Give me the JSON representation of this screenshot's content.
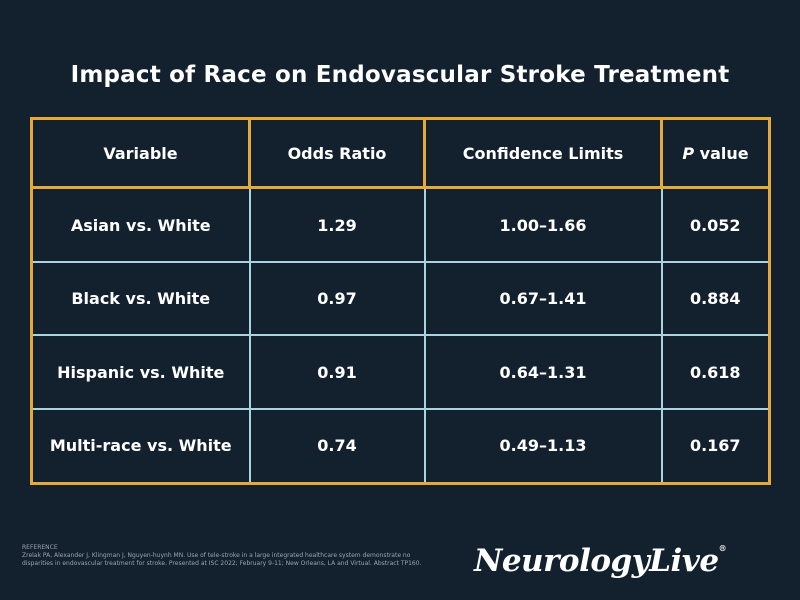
{
  "title": "Impact of Race on Endovascular Stroke Treatment",
  "colors": {
    "background": "#13202e",
    "border_accent": "#e6a93a",
    "row_divider": "#a9d3e0"
  },
  "chart_data": {
    "type": "table",
    "title": "Impact of Race on Endovascular Stroke Treatment",
    "columns": [
      "Variable",
      "Odds Ratio",
      "Confidence Limits",
      "value"
    ],
    "p_prefix": "P",
    "rows": [
      [
        "Asian vs. White",
        "1.29",
        "1.00–1.66",
        "0.052"
      ],
      [
        "Black vs. White",
        "0.97",
        "0.67–1.41",
        "0.884"
      ],
      [
        "Hispanic vs. White",
        "0.91",
        "0.64–1.31",
        "0.618"
      ],
      [
        "Multi-race vs. White",
        "0.74",
        "0.49–1.13",
        "0.167"
      ]
    ]
  },
  "reference": {
    "heading": "REFERENCE",
    "text": "Zrelak PA, Alexander J, Klingman J, Nguyen-huynh MN. Use of tele-stroke in a large integrated healthcare system demonstrate no disparities in endovascular treatment for stroke. Presented at ISC 2022; February 9-11; New Orleans, LA and Virtual. Abstract TP160."
  },
  "logo": {
    "text": "NeurologyLive",
    "mark": "®"
  }
}
